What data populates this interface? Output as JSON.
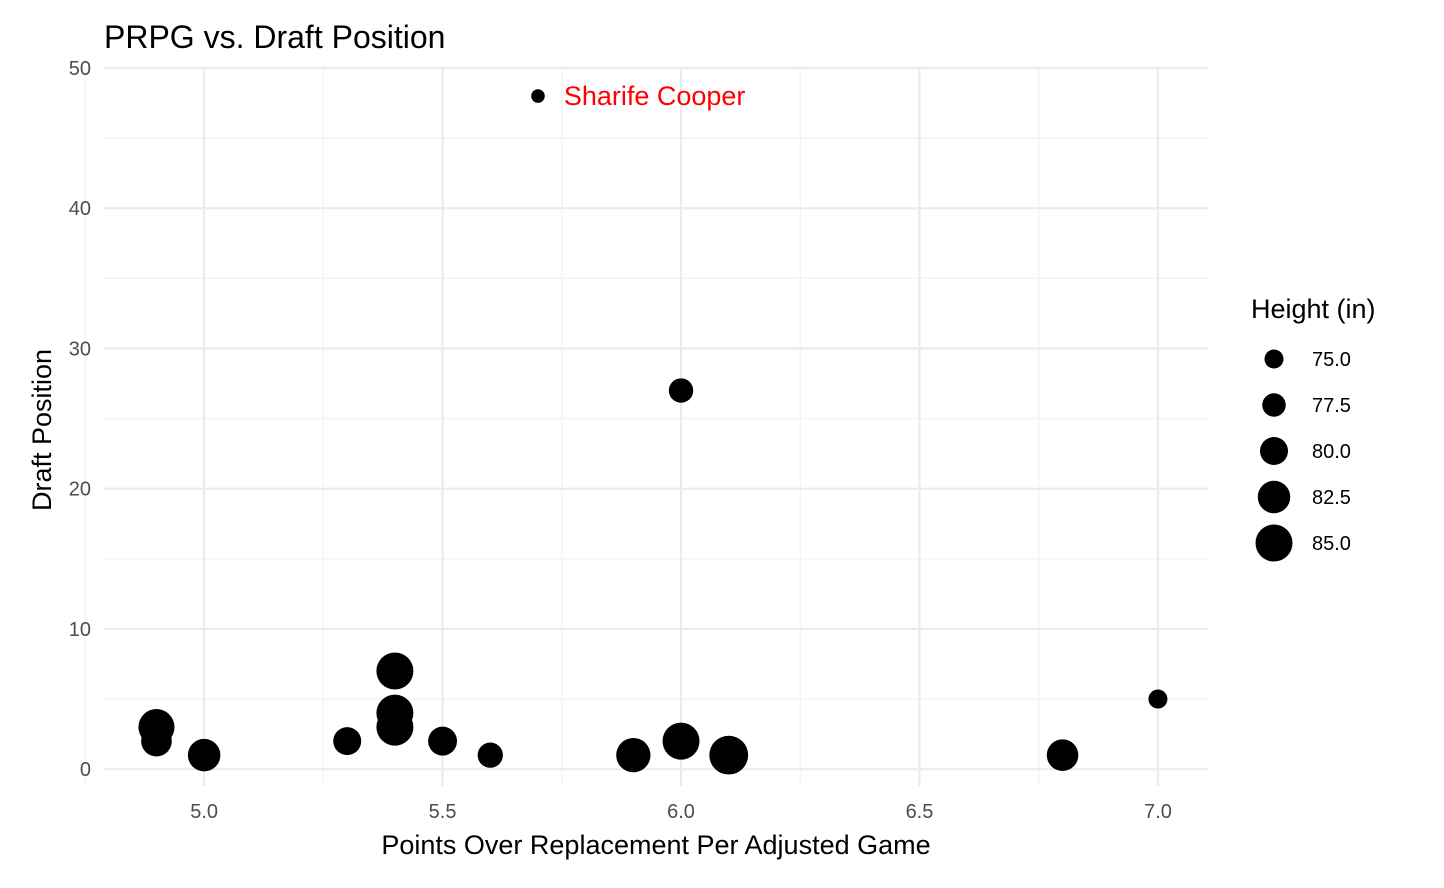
{
  "chart_data": {
    "type": "scatter",
    "title": "PRPG vs. Draft Position",
    "xlabel": "Points Over Replacement Per Adjusted Game",
    "ylabel": "Draft Position",
    "xlim": [
      4.79,
      7.105
    ],
    "ylim": [
      -1.2,
      50.0
    ],
    "x_ticks": [
      5.0,
      5.5,
      6.0,
      6.5,
      7.0
    ],
    "x_tick_labels": [
      "5.0",
      "5.5",
      "6.0",
      "6.5",
      "7.0"
    ],
    "y_ticks": [
      0,
      10,
      20,
      30,
      40,
      50
    ],
    "y_tick_labels": [
      "0",
      "10",
      "20",
      "30",
      "40",
      "50"
    ],
    "grid": true,
    "size_legend": {
      "title": "Height (in)",
      "placement": "right",
      "values": [
        75.0,
        77.5,
        80.0,
        82.5,
        85.0
      ],
      "labels": [
        "75.0",
        "77.5",
        "80.0",
        "82.5",
        "85.0"
      ]
    },
    "points": [
      {
        "x": 4.9,
        "y": 3,
        "height": 84.5
      },
      {
        "x": 4.9,
        "y": 2,
        "height": 81.5
      },
      {
        "x": 5.0,
        "y": 1,
        "height": 82.5
      },
      {
        "x": 5.3,
        "y": 2,
        "height": 80.0
      },
      {
        "x": 5.4,
        "y": 7,
        "height": 85.0
      },
      {
        "x": 5.4,
        "y": 4,
        "height": 85.0
      },
      {
        "x": 5.4,
        "y": 3,
        "height": 85.0
      },
      {
        "x": 5.5,
        "y": 2,
        "height": 80.5
      },
      {
        "x": 5.6,
        "y": 1,
        "height": 78.5
      },
      {
        "x": 5.7,
        "y": 48,
        "height": 72.0
      },
      {
        "x": 5.9,
        "y": 1,
        "height": 83.5
      },
      {
        "x": 6.0,
        "y": 27,
        "height": 78.0
      },
      {
        "x": 6.0,
        "y": 2,
        "height": 85.0
      },
      {
        "x": 6.1,
        "y": 1,
        "height": 86.0
      },
      {
        "x": 6.8,
        "y": 1,
        "height": 82.0
      },
      {
        "x": 7.0,
        "y": 5,
        "height": 75.0
      }
    ],
    "annotations": [
      {
        "text": "Sharife Cooper",
        "x": 5.75,
        "y": 48,
        "color": "#ff0000"
      }
    ],
    "point_color": "#000000"
  }
}
